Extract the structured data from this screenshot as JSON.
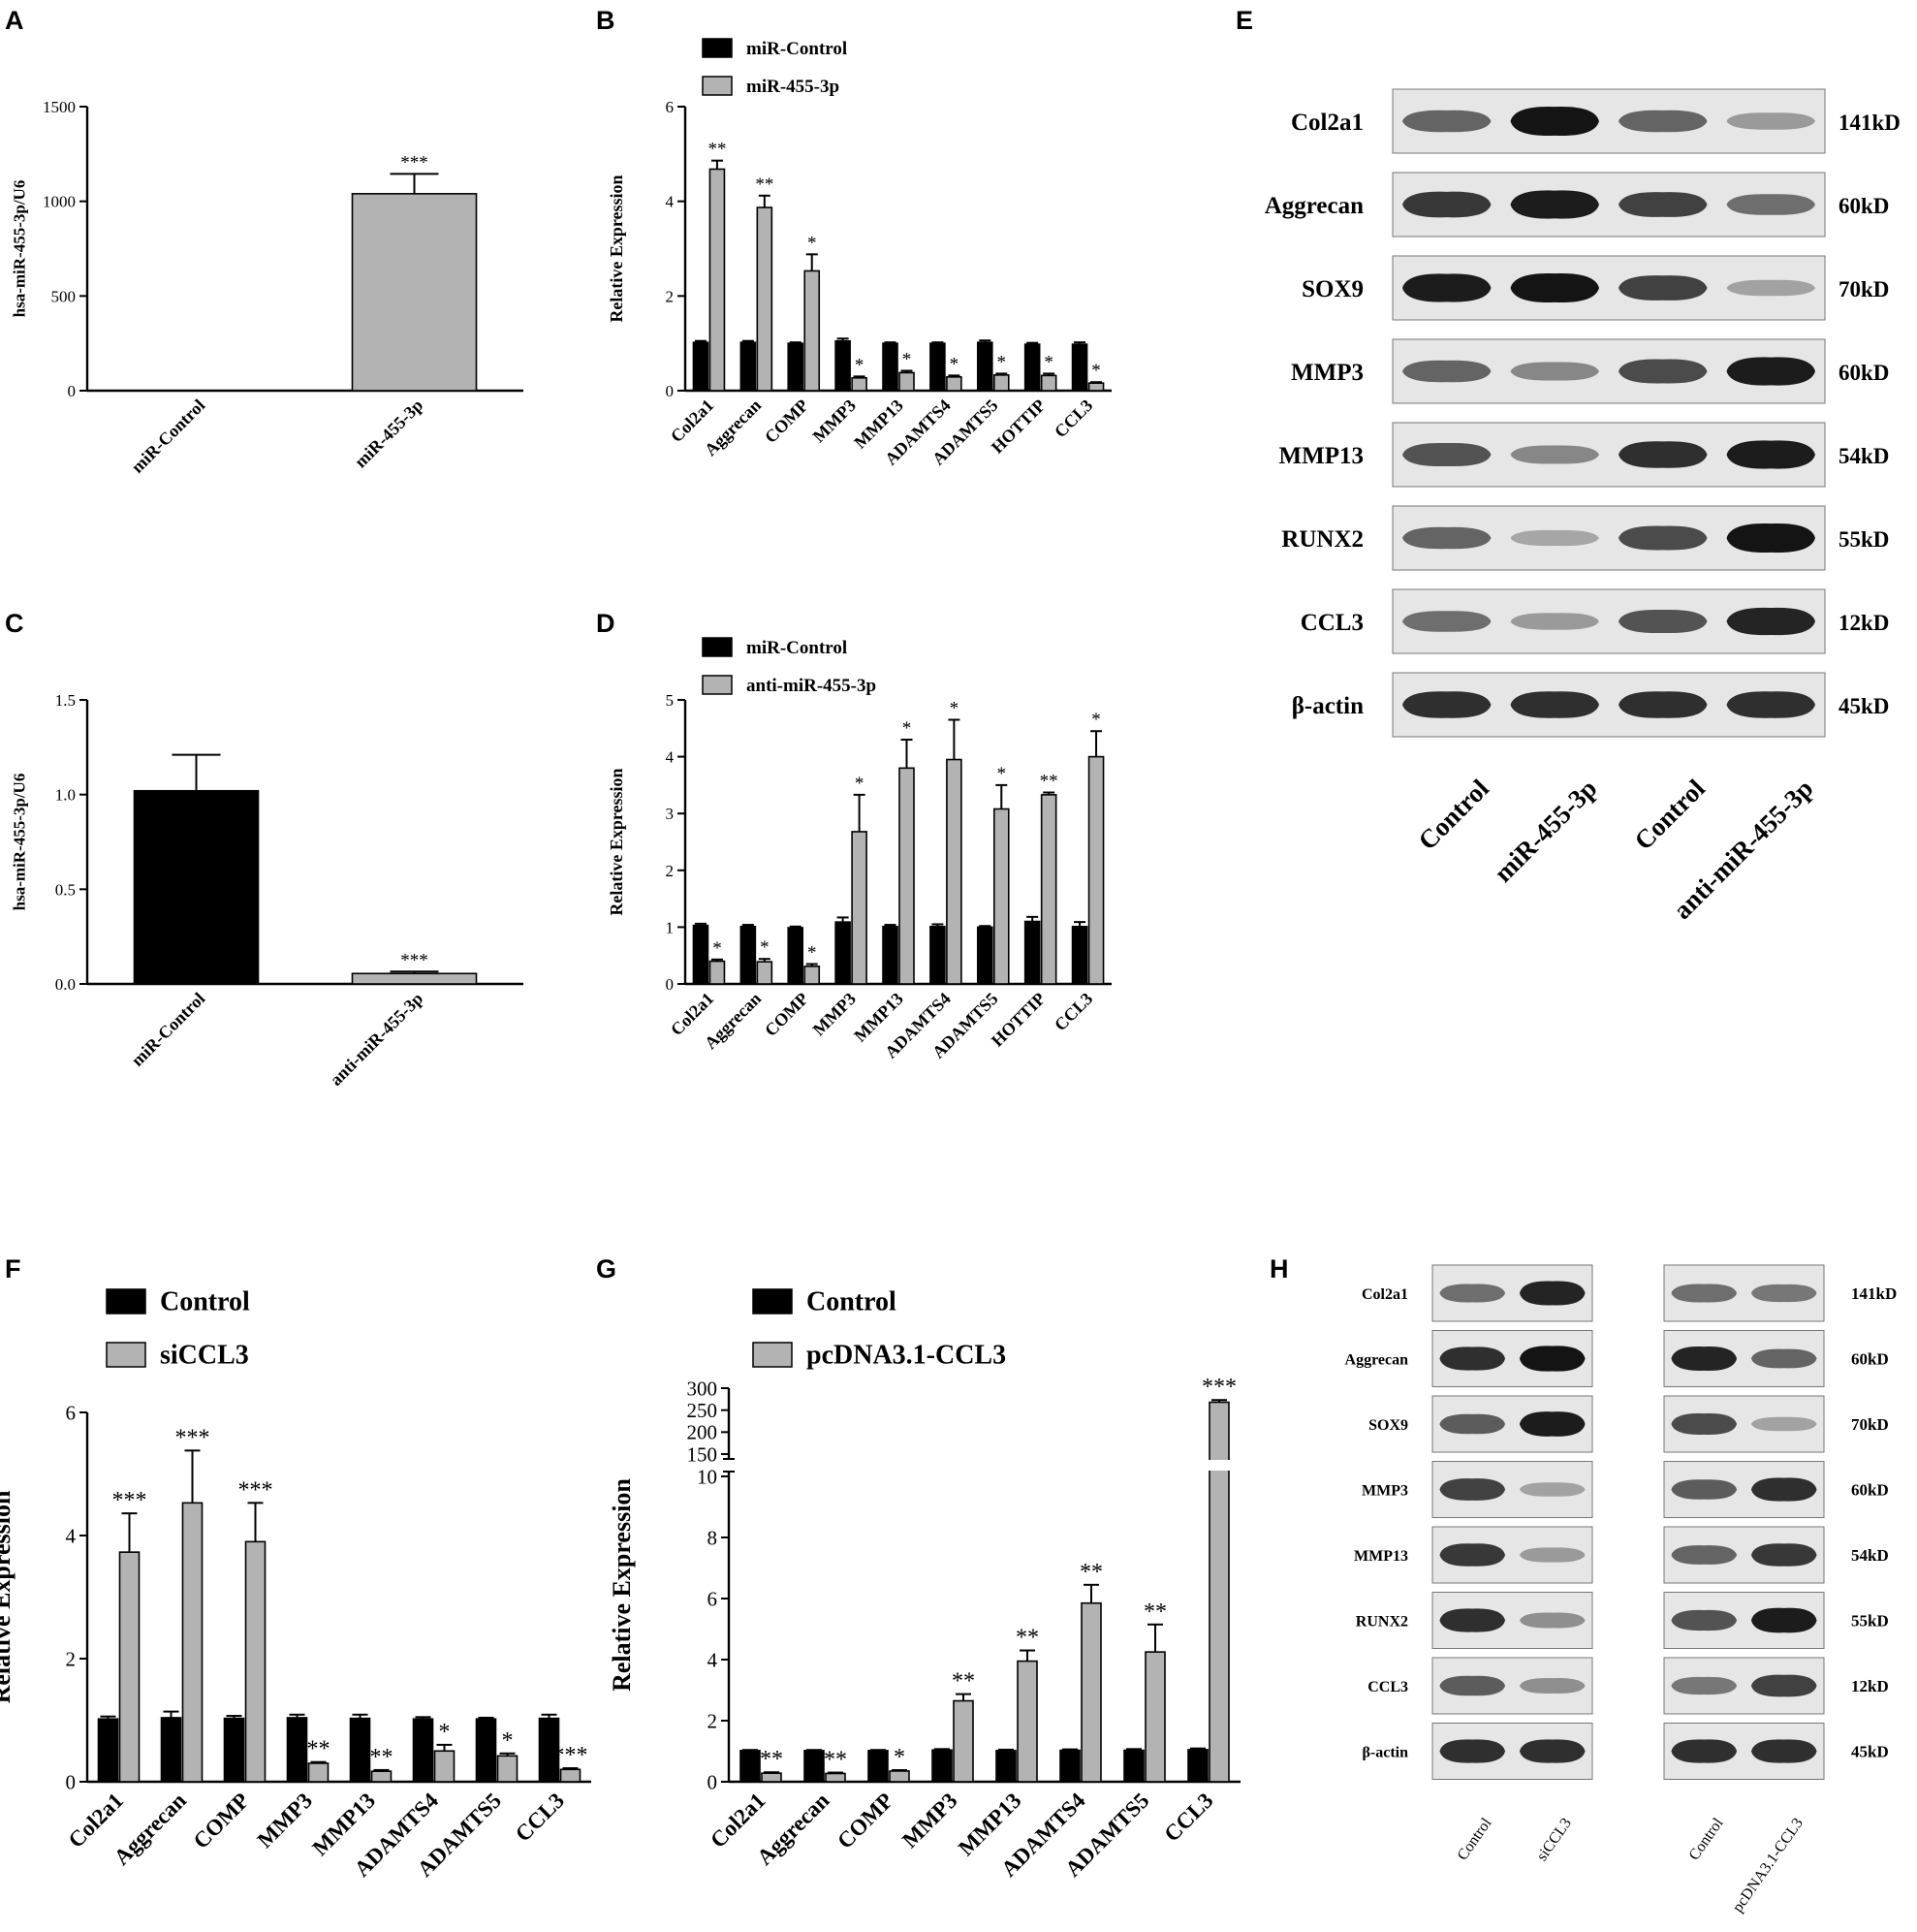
{
  "colors": {
    "control": "#000000",
    "treated": "#b3b3b3",
    "band": "#141414",
    "blot_bg": "#e6e6e6"
  },
  "panels": {
    "A": {
      "letter": "A"
    },
    "B": {
      "letter": "B"
    },
    "C": {
      "letter": "C"
    },
    "D": {
      "letter": "D"
    },
    "E": {
      "letter": "E"
    },
    "F": {
      "letter": "F"
    },
    "G": {
      "letter": "G"
    },
    "H": {
      "letter": "H"
    }
  },
  "chart_data": [
    {
      "panel": "A",
      "type": "bar",
      "categories": [
        "miR-Control",
        "miR-455-3p"
      ],
      "values": [
        0,
        1040
      ],
      "errors": [
        0,
        105
      ],
      "colors": [
        "#000000",
        "#b3b3b3"
      ],
      "significance": [
        "",
        "***"
      ],
      "ylabel": "hsa-miR-455-3p/U6",
      "ylim": [
        0,
        1500
      ],
      "yticks": [
        "0",
        "500",
        "1000",
        "1500"
      ],
      "ytick_values": [
        0,
        500,
        1000,
        1500
      ]
    },
    {
      "panel": "B",
      "type": "bar",
      "categories": [
        "Col2a1",
        "Aggrecan",
        "COMP",
        "MMP3",
        "MMP13",
        "ADAMTS4",
        "ADAMTS5",
        "HOTTIP",
        "CCL3"
      ],
      "series": [
        {
          "name": "miR-Control",
          "color": "#000000",
          "values": [
            1.02,
            1.02,
            1.0,
            1.05,
            1.0,
            1.0,
            1.02,
            0.98,
            0.98
          ],
          "errors": [
            0.03,
            0.03,
            0.02,
            0.05,
            0.02,
            0.02,
            0.04,
            0.03,
            0.04
          ]
        },
        {
          "name": "miR-455-3p",
          "color": "#b3b3b3",
          "values": [
            4.68,
            3.87,
            2.53,
            0.27,
            0.38,
            0.29,
            0.33,
            0.32,
            0.16
          ],
          "errors": [
            0.18,
            0.25,
            0.35,
            0.03,
            0.04,
            0.03,
            0.03,
            0.04,
            0.02
          ]
        }
      ],
      "significance": [
        "**",
        "**",
        "*",
        "*",
        "*",
        "*",
        "*",
        "*",
        "*"
      ],
      "ylabel": "Relative Expression",
      "ylim": [
        0,
        6
      ],
      "yticks": [
        "0",
        "2",
        "4",
        "6"
      ],
      "ytick_values": [
        0,
        2,
        4,
        6
      ],
      "legend": "top-left"
    },
    {
      "panel": "C",
      "type": "bar",
      "categories": [
        "miR-Control",
        "anti-miR-455-3p"
      ],
      "values": [
        1.02,
        0.055
      ],
      "errors": [
        0.19,
        0.01
      ],
      "colors": [
        "#000000",
        "#b3b3b3"
      ],
      "significance": [
        "",
        "***"
      ],
      "ylabel": "hsa-miR-455-3p/U6",
      "ylim": [
        0,
        1.5
      ],
      "yticks": [
        "0.0",
        "0.5",
        "1.0",
        "1.5"
      ],
      "ytick_values": [
        0,
        0.5,
        1.0,
        1.5
      ]
    },
    {
      "panel": "D",
      "type": "bar",
      "categories": [
        "Col2a1",
        "Aggrecan",
        "COMP",
        "MMP3",
        "MMP13",
        "ADAMTS4",
        "ADAMTS5",
        "HOTTIP",
        "CCL3"
      ],
      "series": [
        {
          "name": "miR-Control",
          "color": "#000000",
          "values": [
            1.03,
            1.01,
            0.99,
            1.09,
            1.01,
            1.01,
            1.0,
            1.1,
            1.01
          ],
          "errors": [
            0.03,
            0.03,
            0.02,
            0.08,
            0.03,
            0.04,
            0.02,
            0.08,
            0.08
          ]
        },
        {
          "name": "anti-miR-455-3p",
          "color": "#b3b3b3",
          "values": [
            0.4,
            0.39,
            0.31,
            2.68,
            3.8,
            3.95,
            3.08,
            3.33,
            4.0
          ],
          "errors": [
            0.03,
            0.05,
            0.04,
            0.65,
            0.5,
            0.7,
            0.42,
            0.04,
            0.45
          ]
        }
      ],
      "significance": [
        "*",
        "*",
        "*",
        "*",
        "*",
        "*",
        "*",
        "**",
        "*"
      ],
      "ylabel": "Relative Expression",
      "ylim": [
        0,
        5
      ],
      "yticks": [
        "0",
        "1",
        "2",
        "3",
        "4",
        "5"
      ],
      "ytick_values": [
        0,
        1,
        2,
        3,
        4,
        5
      ],
      "legend": "top-left"
    },
    {
      "panel": "F",
      "type": "bar",
      "categories": [
        "Col2a1",
        "Aggrecan",
        "COMP",
        "MMP3",
        "MMP13",
        "ADAMTS4",
        "ADAMTS5",
        "CCL3"
      ],
      "series": [
        {
          "name": "Control",
          "color": "#000000",
          "values": [
            1.02,
            1.04,
            1.03,
            1.04,
            1.03,
            1.02,
            1.02,
            1.03
          ],
          "errors": [
            0.04,
            0.1,
            0.04,
            0.05,
            0.06,
            0.03,
            0.02,
            0.06
          ]
        },
        {
          "name": "siCCL3",
          "color": "#b3b3b3",
          "values": [
            3.73,
            4.53,
            3.9,
            0.3,
            0.17,
            0.5,
            0.42,
            0.2
          ],
          "errors": [
            0.63,
            0.85,
            0.63,
            0.02,
            0.02,
            0.1,
            0.04,
            0.02
          ]
        }
      ],
      "significance": [
        "***",
        "***",
        "***",
        "**",
        "**",
        "*",
        "*",
        "***"
      ],
      "ylabel": "Relative Expression",
      "ylim": [
        0,
        6
      ],
      "yticks": [
        "0",
        "2",
        "4",
        "6"
      ],
      "ytick_values": [
        0,
        2,
        4,
        6
      ],
      "legend": "top-left"
    },
    {
      "panel": "G",
      "type": "bar",
      "axis_break": [
        10,
        150
      ],
      "categories": [
        "Col2a1",
        "Aggrecan",
        "COMP",
        "MMP3",
        "MMP13",
        "ADAMTS4",
        "ADAMTS5",
        "CCL3"
      ],
      "series": [
        {
          "name": "Control",
          "color": "#000000",
          "values": [
            1.02,
            1.02,
            1.02,
            1.04,
            1.02,
            1.03,
            1.03,
            1.05
          ],
          "errors": [
            0.02,
            0.02,
            0.02,
            0.03,
            0.03,
            0.03,
            0.04,
            0.04
          ]
        },
        {
          "name": "pcDNA3.1-CCL3",
          "color": "#b3b3b3",
          "values": [
            0.28,
            0.27,
            0.35,
            2.65,
            3.95,
            5.85,
            4.25,
            268
          ],
          "errors": [
            0.03,
            0.03,
            0.03,
            0.22,
            0.35,
            0.6,
            0.9,
            5
          ]
        }
      ],
      "significance": [
        "**",
        "**",
        "*",
        "**",
        "**",
        "**",
        "**",
        "***"
      ],
      "ylabel": "Relative Expression",
      "ylim": [
        0,
        300
      ],
      "yticks_lower": [
        "0",
        "2",
        "4",
        "6",
        "8",
        "10"
      ],
      "ytick_values_lower": [
        0,
        2,
        4,
        6,
        8,
        10
      ],
      "yticks_upper": [
        "150",
        "200",
        "250",
        "300"
      ],
      "ytick_values_upper": [
        150,
        200,
        250,
        300
      ],
      "legend": "top-left"
    }
  ],
  "blots": {
    "E": {
      "rows": [
        "Col2a1",
        "Aggrecan",
        "SOX9",
        "MMP3",
        "MMP13",
        "RUNX2",
        "CCL3",
        "β-actin"
      ],
      "sizes": [
        "141kD",
        "60kD",
        "70kD",
        "60kD",
        "54kD",
        "55kD",
        "12kD",
        "45kD"
      ],
      "lanes": [
        "Control",
        "miR-455-3p",
        "Control",
        "anti-miR-455-3p"
      ],
      "intensities": [
        [
          0.55,
          1.0,
          0.55,
          0.25
        ],
        [
          0.8,
          0.95,
          0.75,
          0.5
        ],
        [
          0.95,
          1.0,
          0.75,
          0.2
        ],
        [
          0.55,
          0.35,
          0.7,
          0.95
        ],
        [
          0.65,
          0.35,
          0.85,
          0.95
        ],
        [
          0.55,
          0.18,
          0.7,
          1.0
        ],
        [
          0.5,
          0.25,
          0.65,
          0.9
        ],
        [
          0.85,
          0.85,
          0.85,
          0.85
        ]
      ]
    },
    "H": {
      "rows": [
        "Col2a1",
        "Aggrecan",
        "SOX9",
        "MMP3",
        "MMP13",
        "RUNX2",
        "CCL3",
        "β-actin"
      ],
      "sizes": [
        "141kD",
        "60kD",
        "70kD",
        "60kD",
        "54kD",
        "55kD",
        "12kD",
        "45kD"
      ],
      "lanes_left": [
        "Control",
        "siCCL3"
      ],
      "lanes_right": [
        "Control",
        "pcDNA3.1-CCL3"
      ],
      "intensities_left": [
        [
          0.5,
          0.9
        ],
        [
          0.85,
          1.0
        ],
        [
          0.6,
          0.95
        ],
        [
          0.75,
          0.2
        ],
        [
          0.8,
          0.25
        ],
        [
          0.85,
          0.3
        ],
        [
          0.6,
          0.3
        ],
        [
          0.85,
          0.85
        ]
      ],
      "intensities_right": [
        [
          0.5,
          0.45
        ],
        [
          0.9,
          0.55
        ],
        [
          0.7,
          0.2
        ],
        [
          0.6,
          0.85
        ],
        [
          0.55,
          0.8
        ],
        [
          0.65,
          0.95
        ],
        [
          0.45,
          0.75
        ],
        [
          0.85,
          0.85
        ]
      ]
    }
  }
}
